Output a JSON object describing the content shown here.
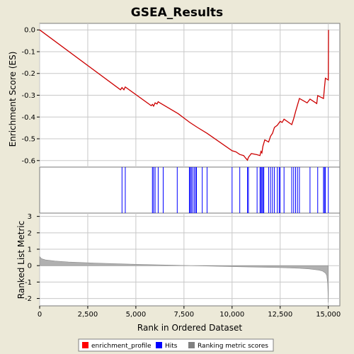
{
  "chart_data": {
    "type": "line",
    "title": "GSEA_Results",
    "xlabel": "Rank in Ordered Dataset",
    "xlim": [
      0,
      15600
    ],
    "x_ticks": [
      0,
      2500,
      5000,
      7500,
      10000,
      12500,
      15000
    ],
    "x_tick_labels": [
      "0",
      "2,500",
      "5,000",
      "7,500",
      "10,000",
      "12,500",
      "15,000"
    ],
    "panels": {
      "enrichment": {
        "ylabel": "Enrichment Score (ES)",
        "ylim": [
          -0.63,
          0.03
        ],
        "y_ticks": [
          0.0,
          -0.1,
          -0.2,
          -0.3,
          -0.4,
          -0.5,
          -0.6
        ],
        "y_tick_labels": [
          "0.0",
          "-0.1",
          "-0.2",
          "-0.3",
          "-0.4",
          "-0.5",
          "-0.6"
        ],
        "series": [
          {
            "name": "enrichment_profile",
            "color": "#CC0000",
            "x": [
              0,
              4200,
              4280,
              4380,
              4450,
              5800,
              5860,
              5920,
              6000,
              6100,
              6160,
              6250,
              7200,
              7800,
              8200,
              8700,
              10000,
              10200,
              10400,
              10600,
              10700,
              10800,
              10850,
              11000,
              11300,
              11450,
              11500,
              11550,
              11600,
              11700,
              11900,
              12000,
              12100,
              12200,
              12350,
              12500,
              12600,
              12700,
              13100,
              13200,
              13300,
              13400,
              13500,
              13900,
              14050,
              14400,
              14450,
              14750,
              14800,
              14850,
              15000,
              15010
            ],
            "y": [
              0.0,
              -0.275,
              -0.265,
              -0.275,
              -0.262,
              -0.348,
              -0.342,
              -0.35,
              -0.335,
              -0.34,
              -0.33,
              -0.335,
              -0.385,
              -0.425,
              -0.448,
              -0.475,
              -0.555,
              -0.56,
              -0.572,
              -0.577,
              -0.588,
              -0.598,
              -0.585,
              -0.568,
              -0.573,
              -0.577,
              -0.558,
              -0.565,
              -0.535,
              -0.505,
              -0.515,
              -0.488,
              -0.475,
              -0.448,
              -0.438,
              -0.42,
              -0.425,
              -0.41,
              -0.435,
              -0.408,
              -0.375,
              -0.345,
              -0.315,
              -0.335,
              -0.318,
              -0.338,
              -0.302,
              -0.315,
              -0.265,
              -0.222,
              -0.23,
              0.0
            ]
          }
        ]
      },
      "hits": {
        "name": "Hits",
        "color": "#0000FF",
        "positions": [
          4280,
          4450,
          5860,
          5920,
          6000,
          6160,
          6420,
          7150,
          7780,
          7830,
          7880,
          7950,
          8030,
          8100,
          8150,
          8450,
          8700,
          10000,
          10400,
          10800,
          10850,
          11300,
          11450,
          11500,
          11550,
          11600,
          11650,
          11900,
          12000,
          12100,
          12200,
          12350,
          12450,
          12500,
          12700,
          13100,
          13200,
          13300,
          13400,
          13500,
          14050,
          14450,
          14750,
          14800,
          14850,
          15000
        ]
      },
      "ranking": {
        "name": "Ranking metric scores",
        "color": "#B0B0B0",
        "ylabel": "Ranked List Metric",
        "ylim": [
          -2.45,
          3.2
        ],
        "y_ticks": [
          3,
          2,
          1,
          0,
          -1,
          -2
        ],
        "y_tick_labels": [
          "3",
          "2",
          "1",
          "0",
          "-1",
          "-2"
        ],
        "x": [
          0,
          100,
          300,
          800,
          1500,
          3000,
          5000,
          7500,
          10000,
          12500,
          13500,
          14000,
          14500,
          14700,
          14850,
          14920,
          14970,
          15000
        ],
        "y": [
          0.55,
          0.42,
          0.35,
          0.28,
          0.22,
          0.15,
          0.08,
          0.01,
          -0.06,
          -0.12,
          -0.16,
          -0.2,
          -0.27,
          -0.33,
          -0.45,
          -0.6,
          -1.1,
          -2.25
        ]
      }
    },
    "legend": {
      "placement": "bottom",
      "entries": [
        {
          "label": "enrichment_profile",
          "color": "#FF0000"
        },
        {
          "label": "Hits",
          "color": "#0000FF"
        },
        {
          "label": "Ranking metric scores",
          "color": "#808080"
        }
      ]
    }
  }
}
